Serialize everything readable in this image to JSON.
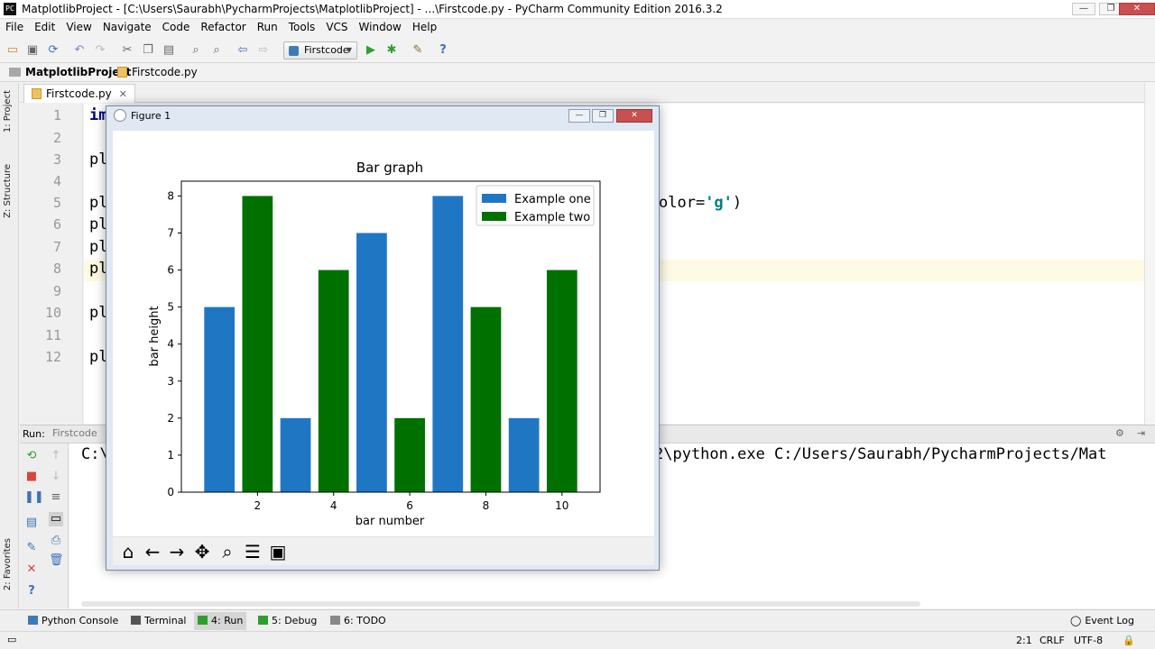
{
  "window": {
    "title": "MatplotlibProject - [C:\\Users\\Saurabh\\PycharmProjects\\MatplotlibProject] - ...\\Firstcode.py - PyCharm Community Edition 2016.3.2",
    "app_icon": "PC",
    "minimize": "—",
    "maximize": "❐",
    "close": "✕"
  },
  "menu": [
    "File",
    "Edit",
    "View",
    "Navigate",
    "Code",
    "Refactor",
    "Run",
    "Tools",
    "VCS",
    "Window",
    "Help"
  ],
  "toolbar": {
    "run_config": "Firstcode",
    "icons": [
      "open-folder-icon",
      "save-icon",
      "sync-icon",
      "undo-icon",
      "redo-icon",
      "cut-icon",
      "copy-icon",
      "paste-icon",
      "find-icon",
      "replace-icon",
      "back-icon",
      "forward-icon",
      "run-icon",
      "debug-icon",
      "settings-icon",
      "help-icon"
    ]
  },
  "breadcrumb": {
    "project": "MatplotlibProject",
    "file": "Firstcode.py"
  },
  "left_stripe": {
    "project": "1: Project",
    "structure": "Z: Structure",
    "favorites": "2: Favorites"
  },
  "editor": {
    "tab": "Firstcode.py",
    "line_numbers": [
      "1",
      "2",
      "3",
      "4",
      "5",
      "6",
      "7",
      "8",
      "9",
      "10",
      "11",
      "12"
    ],
    "visible_code": {
      "line1": "im",
      "line3": "pl",
      "line5": "pl",
      "line6": "pl",
      "line7": "pl",
      "line8": "pl",
      "line10": "pl",
      "line12": "pl",
      "line5_tail_prefix": "olor=",
      "line5_tail_str": "'g'",
      "line5_tail_suffix": ")"
    }
  },
  "run_panel": {
    "label": "Run:",
    "tab": "Firstcode",
    "console_left": "C:\\",
    "console_right": "2\\python.exe C:/Users/Saurabh/PycharmProjects/Mat"
  },
  "bottom_bar": {
    "python_console": "Python Console",
    "terminal": "Terminal",
    "run": "4: Run",
    "debug": "5: Debug",
    "todo": "6: TODO",
    "event_log": "Event Log"
  },
  "status_bar": {
    "position": "2:1",
    "line_sep": "CRLF",
    "encoding": "UTF-8"
  },
  "figure": {
    "title": "Figure 1",
    "toolbar_icons": [
      "home-icon",
      "back-arrow-icon",
      "forward-arrow-icon",
      "pan-icon",
      "zoom-icon",
      "subplots-icon",
      "save-figure-icon"
    ]
  },
  "colors": {
    "example_one": "#1f77c4",
    "example_two": "#007000"
  },
  "chart_data": {
    "type": "bar",
    "title": "Bar graph",
    "xlabel": "bar number",
    "ylabel": "bar height",
    "xlim": [
      0,
      11
    ],
    "ylim": [
      0,
      8.4
    ],
    "xticks": [
      2,
      4,
      6,
      8,
      10
    ],
    "yticks": [
      0,
      1,
      2,
      3,
      4,
      5,
      6,
      7,
      8
    ],
    "legend_position": "top-right",
    "series": [
      {
        "name": "Example one",
        "color": "#1f77c4",
        "x": [
          1,
          3,
          5,
          7,
          9
        ],
        "values": [
          5,
          2,
          7,
          8,
          2
        ]
      },
      {
        "name": "Example two",
        "color": "#007000",
        "x": [
          2,
          4,
          6,
          8,
          10
        ],
        "values": [
          8,
          6,
          2,
          5,
          6
        ]
      }
    ]
  }
}
